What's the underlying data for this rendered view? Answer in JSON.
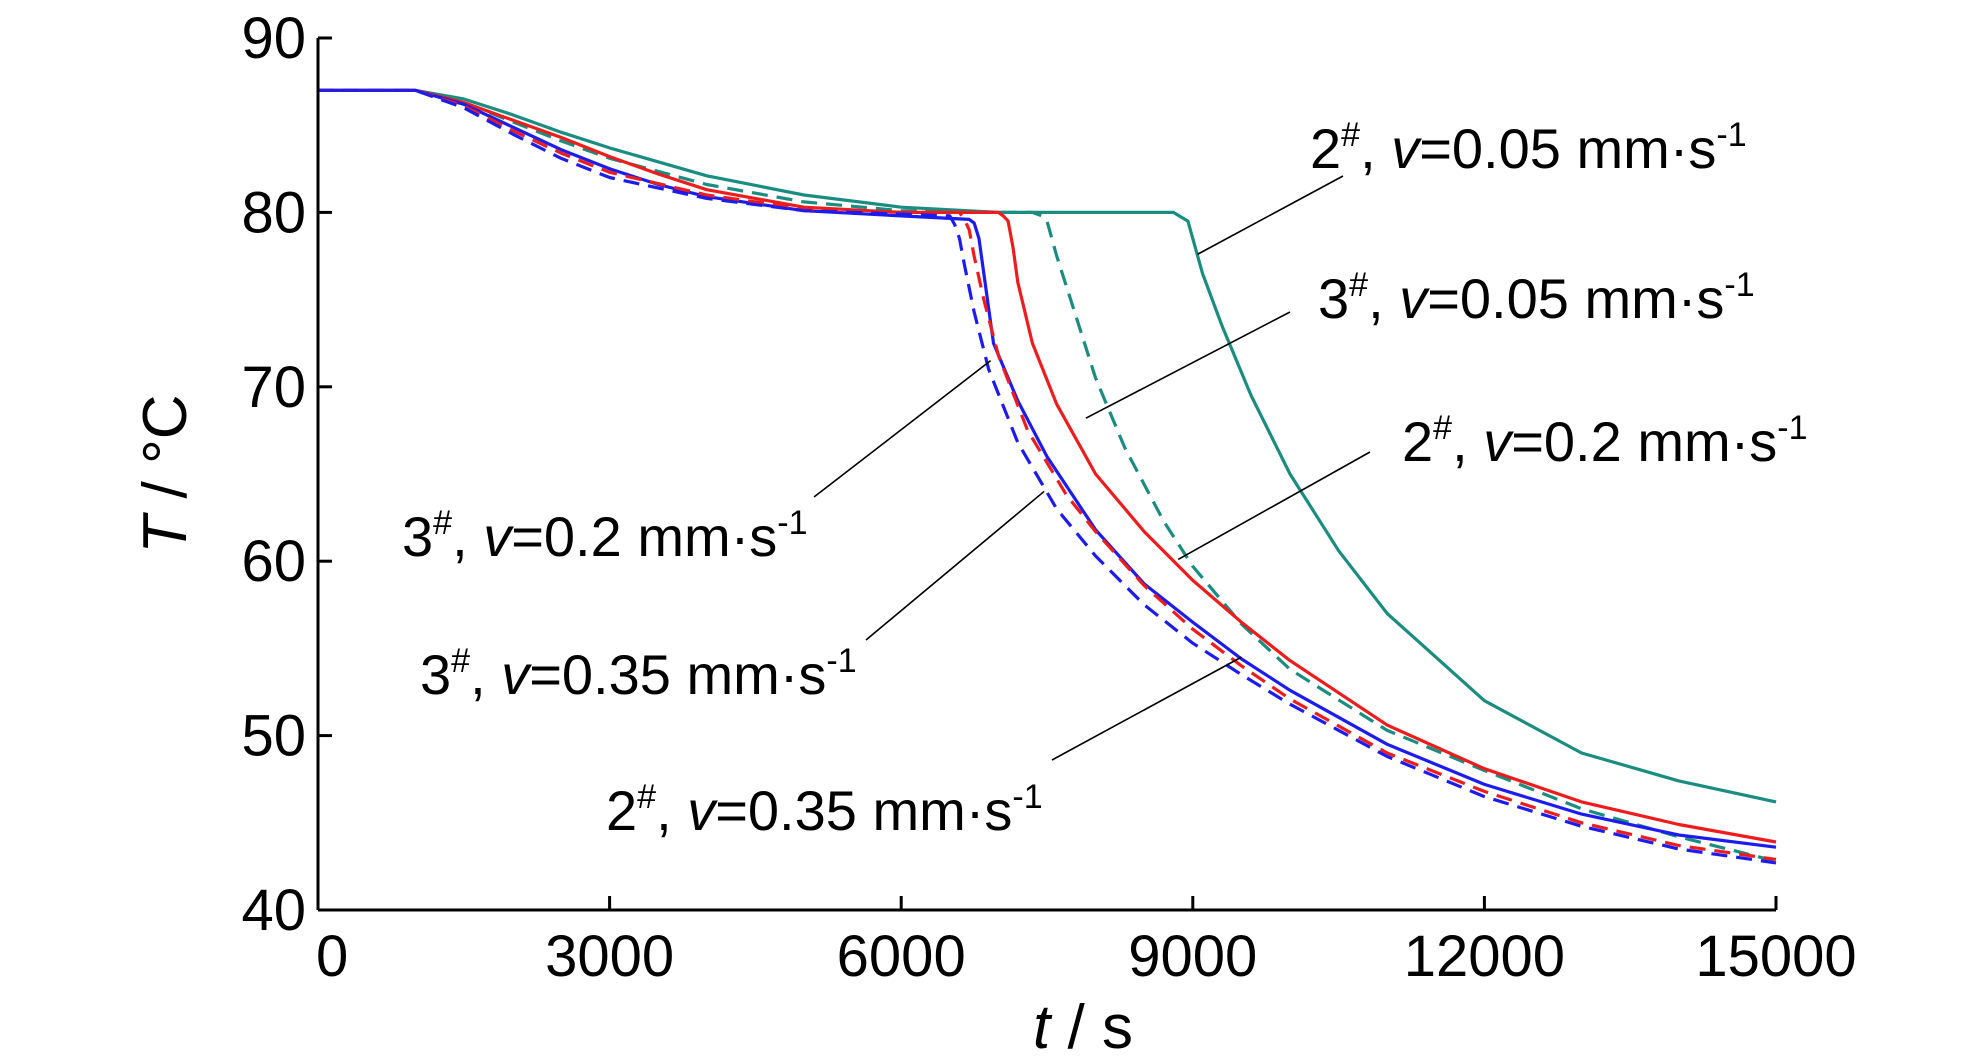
{
  "chart_data": {
    "type": "line",
    "xlabel": {
      "var": "t",
      "unit": "s"
    },
    "ylabel": {
      "var": "T",
      "unit": "°C"
    },
    "xlim": [
      0,
      15000
    ],
    "ylim": [
      40,
      90
    ],
    "xticks": [
      "0",
      "3000",
      "6000",
      "9000",
      "12000",
      "15000"
    ],
    "yticks": [
      "40",
      "50",
      "60",
      "70",
      "80",
      "90"
    ],
    "grid": false,
    "colors": {
      "teal": "#1a8c80",
      "red": "#ee1c1c",
      "blue": "#1c1cee"
    },
    "series": [
      {
        "name": "2#, v=0.05 mm·s-1",
        "color": "teal",
        "dash": false,
        "x": [
          0,
          1000,
          1500,
          2000,
          2500,
          3000,
          4000,
          5000,
          6000,
          7000,
          8000,
          8800,
          8950,
          9000,
          9100,
          9300,
          9600,
          10000,
          10500,
          11000,
          12000,
          13000,
          14000,
          15000
        ],
        "y": [
          87,
          87,
          86.5,
          85.6,
          84.6,
          83.7,
          82.1,
          81,
          80.3,
          80,
          80,
          80,
          79.5,
          78.5,
          76.5,
          73.5,
          69.5,
          65,
          60.6,
          57,
          52,
          49,
          47.4,
          46.2
        ]
      },
      {
        "name": "3#, v=0.05 mm·s-1",
        "color": "teal",
        "dash": true,
        "x": [
          0,
          1000,
          1500,
          2000,
          2500,
          3000,
          4000,
          5000,
          6000,
          7000,
          7350,
          7450,
          7500,
          7600,
          7800,
          8000,
          8300,
          8700,
          9000,
          9500,
          10000,
          11000,
          12000,
          13000,
          14000,
          15000
        ],
        "y": [
          87,
          87,
          86.3,
          85.2,
          84.1,
          83.1,
          81.6,
          80.6,
          80.1,
          80,
          80,
          79.8,
          79.5,
          77.5,
          74,
          70.5,
          66.5,
          62.3,
          59.7,
          56.4,
          53.8,
          50.3,
          48,
          45.8,
          44.2,
          42.8
        ]
      },
      {
        "name": "2#, v=0.2 mm·s-1",
        "color": "red",
        "dash": false,
        "x": [
          0,
          1000,
          1500,
          2000,
          2500,
          3000,
          3500,
          4000,
          5000,
          6000,
          7000,
          7050,
          7100,
          7150,
          7200,
          7350,
          7600,
          8000,
          8500,
          9000,
          9500,
          10000,
          11000,
          12000,
          13000,
          14000,
          15000
        ],
        "y": [
          87,
          87,
          86.3,
          85.3,
          84.3,
          83.2,
          82.2,
          81.3,
          80.3,
          80,
          80,
          79.8,
          79.5,
          78,
          76,
          72.5,
          69,
          65,
          61.7,
          58.9,
          56.5,
          54.3,
          50.6,
          48.1,
          46.2,
          44.9,
          43.9
        ]
      },
      {
        "name": "3#, v=0.2 mm·s-1",
        "color": "blue",
        "dash": false,
        "x": [
          0,
          1000,
          1500,
          2000,
          2500,
          3000,
          3500,
          4000,
          5000,
          6000,
          6700,
          6750,
          6800,
          6850,
          6950,
          7200,
          7500,
          8000,
          8500,
          9000,
          9500,
          10000,
          11000,
          12000,
          13000,
          14000,
          15000
        ],
        "y": [
          87,
          87,
          86.2,
          84.9,
          83.6,
          82.5,
          81.6,
          80.9,
          80.1,
          79.8,
          79.6,
          79.4,
          78.5,
          76.5,
          72.5,
          69.2,
          66,
          61.8,
          58.7,
          56.5,
          54.4,
          52.6,
          49.5,
          47.2,
          45.5,
          44.3,
          43.6
        ]
      },
      {
        "name": "2#, v=0.35 mm·s-1",
        "color": "red",
        "dash": true,
        "x": [
          0,
          1000,
          1500,
          2000,
          2500,
          3000,
          4000,
          5000,
          6000,
          6600,
          6650,
          6700,
          6750,
          6850,
          7000,
          7300,
          7700,
          8000,
          8500,
          9000,
          9500,
          10000,
          11000,
          12000,
          13000,
          14000,
          15000
        ],
        "y": [
          87,
          87,
          86.1,
          84.7,
          83.4,
          82.3,
          81,
          80.2,
          80,
          80,
          79.6,
          79,
          77.5,
          75,
          71.8,
          67.5,
          63.8,
          61.7,
          58.6,
          56.1,
          54,
          52.1,
          49,
          46.8,
          45,
          43.7,
          42.9
        ]
      },
      {
        "name": "3#, v=0.35 mm·s-1",
        "color": "blue",
        "dash": true,
        "x": [
          0,
          1000,
          1500,
          2000,
          2500,
          3000,
          4000,
          5000,
          6000,
          6500,
          6550,
          6600,
          6650,
          6750,
          6900,
          7200,
          7600,
          8000,
          8500,
          9000,
          9500,
          10000,
          11000,
          12000,
          13000,
          14000,
          15000
        ],
        "y": [
          87,
          87,
          86,
          84.5,
          83.1,
          82,
          80.8,
          80.1,
          79.9,
          79.8,
          79.3,
          78.5,
          77,
          74.3,
          71,
          66.8,
          63,
          60.3,
          57.5,
          55.3,
          53.5,
          51.8,
          48.8,
          46.5,
          44.8,
          43.5,
          42.7
        ]
      }
    ],
    "annotations": [
      {
        "main": "2",
        "sup": "#",
        "mid": ", ",
        "var": "v",
        "rest": "=0.05 mm·s",
        "exp": "-1",
        "series": 0
      },
      {
        "main": "3",
        "sup": "#",
        "mid": ", ",
        "var": "v",
        "rest": "=0.05 mm·s",
        "exp": "-1",
        "series": 1
      },
      {
        "main": "2",
        "sup": "#",
        "mid": ", ",
        "var": "v",
        "rest": "=0.2 mm·s",
        "exp": "-1",
        "series": 2
      },
      {
        "main": "3",
        "sup": "#",
        "mid": ", ",
        "var": "v",
        "rest": "=0.2 mm·s",
        "exp": "-1",
        "series": 3
      },
      {
        "main": "3",
        "sup": "#",
        "mid": ", ",
        "var": "v",
        "rest": "=0.35 mm·s",
        "exp": "-1",
        "series": 5
      },
      {
        "main": "2",
        "sup": "#",
        "mid": ", ",
        "var": "v",
        "rest": "=0.35 mm·s",
        "exp": "-1",
        "series": 4
      }
    ]
  }
}
